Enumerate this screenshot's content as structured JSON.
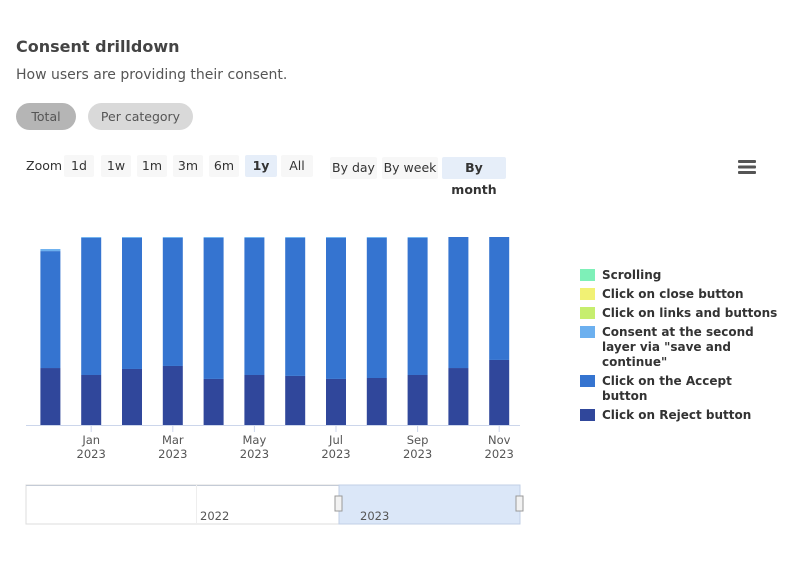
{
  "header": {
    "title": "Consent drilldown",
    "subtitle": "How users are providing their consent."
  },
  "tabs": [
    {
      "label": "Total",
      "active": true
    },
    {
      "label": "Per category",
      "active": false
    }
  ],
  "zoom": {
    "label": "Zoom",
    "buttons": [
      {
        "label": "1d",
        "active": false
      },
      {
        "label": "1w",
        "active": false
      },
      {
        "label": "1m",
        "active": false
      },
      {
        "label": "3m",
        "active": false
      },
      {
        "label": "6m",
        "active": false
      },
      {
        "label": "1y",
        "active": true
      },
      {
        "label": "All",
        "active": false
      }
    ]
  },
  "periods": [
    {
      "label": "By day",
      "active": false
    },
    {
      "label": "By week",
      "active": false
    },
    {
      "label": "By month",
      "active": true
    }
  ],
  "navigator": {
    "labels": [
      "2022",
      "2023"
    ]
  },
  "chart_data": {
    "type": "stacked_bar",
    "categories": [
      null,
      "Jan",
      null,
      "Mar",
      null,
      "May",
      null,
      "Jul",
      null,
      "Sep",
      null,
      "Nov"
    ],
    "category_years": [
      null,
      "2023",
      null,
      "2023",
      null,
      "2023",
      null,
      "2023",
      null,
      "2023",
      null,
      "2023"
    ],
    "ylim": [
      0,
      100
    ],
    "series": [
      {
        "name": "Scrolling",
        "color": "#7ef0b8",
        "values": [
          0,
          0,
          0,
          0,
          0,
          0,
          0,
          0,
          0,
          0,
          0,
          0
        ]
      },
      {
        "name": "Click on close button",
        "color": "#f1f174",
        "values": [
          0,
          0,
          0,
          0,
          0,
          0,
          0,
          0,
          0,
          0,
          0,
          0
        ]
      },
      {
        "name": "Click on links and buttons",
        "color": "#c6ee6e",
        "values": [
          0,
          0,
          0,
          0,
          0,
          0,
          0,
          0,
          0,
          0,
          0,
          0
        ]
      },
      {
        "name": "Consent at the second layer via \"save and continue\"",
        "color": "#6cb0ef",
        "values": [
          1.1,
          0.5,
          0.5,
          0.5,
          0.5,
          0.5,
          0.5,
          0.5,
          0.5,
          0.5,
          0,
          0
        ]
      },
      {
        "name": "Click on the Accept button",
        "color": "#3574d0",
        "values": [
          62.2,
          72.9,
          69.7,
          68.1,
          75.0,
          72.9,
          73.4,
          75.0,
          74.5,
          72.9,
          69.7,
          65.4
        ]
      },
      {
        "name": "Click on Reject button",
        "color": "#30479b",
        "values": [
          30.3,
          26.6,
          29.8,
          31.4,
          24.5,
          26.6,
          26.1,
          24.5,
          25.0,
          26.6,
          30.3,
          34.6
        ]
      }
    ]
  }
}
